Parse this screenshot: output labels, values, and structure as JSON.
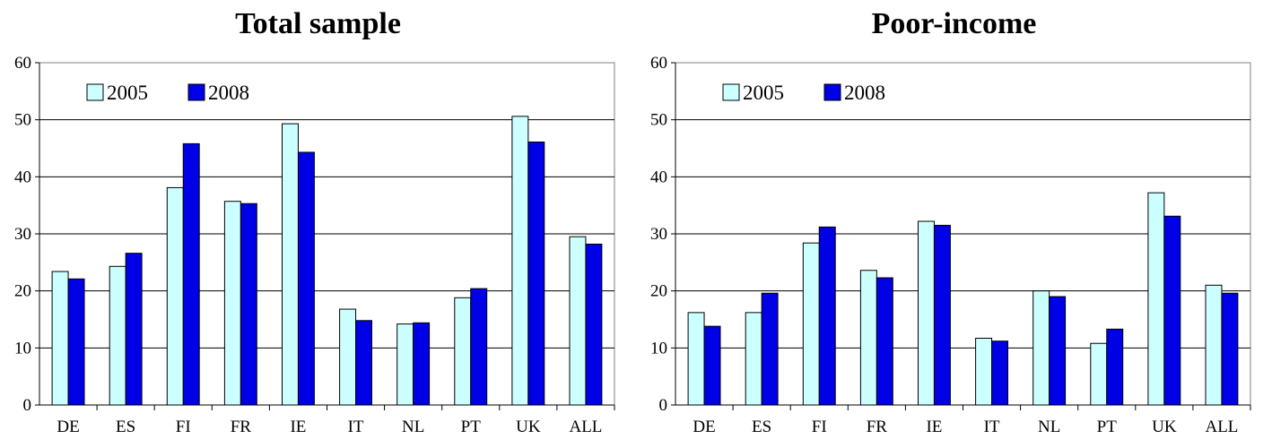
{
  "chart_data": [
    {
      "type": "bar",
      "title": "Total sample",
      "categories": [
        "DE",
        "ES",
        "FI",
        "FR",
        "IE",
        "IT",
        "NL",
        "PT",
        "UK",
        "ALL"
      ],
      "series": [
        {
          "name": "2005",
          "color": "#ccffff",
          "values": [
            23.4,
            24.3,
            38.1,
            35.7,
            49.3,
            16.8,
            14.2,
            18.8,
            50.6,
            29.5
          ]
        },
        {
          "name": "2008",
          "color": "#0000e6",
          "values": [
            22.1,
            26.6,
            45.8,
            35.3,
            44.3,
            14.8,
            14.4,
            20.4,
            46.1,
            28.2
          ]
        }
      ],
      "yticks": [
        "0",
        "10",
        "20",
        "30",
        "40",
        "50",
        "60"
      ],
      "ylim": [
        0,
        60
      ],
      "grid": true,
      "legend": "top-left, inside plot"
    },
    {
      "type": "bar",
      "title": "Poor-income",
      "categories": [
        "DE",
        "ES",
        "FI",
        "FR",
        "IE",
        "IT",
        "NL",
        "PT",
        "UK",
        "ALL"
      ],
      "series": [
        {
          "name": "2005",
          "color": "#ccffff",
          "values": [
            16.2,
            16.2,
            28.4,
            23.6,
            32.2,
            11.7,
            20.0,
            10.8,
            37.2,
            21.0
          ]
        },
        {
          "name": "2008",
          "color": "#0000e6",
          "values": [
            13.8,
            19.6,
            31.2,
            22.3,
            31.5,
            11.2,
            19.0,
            13.3,
            33.1,
            19.6
          ]
        }
      ],
      "yticks": [
        "0",
        "10",
        "20",
        "30",
        "40",
        "50",
        "60"
      ],
      "ylim": [
        0,
        60
      ],
      "grid": true,
      "legend": "top-left, inside plot"
    }
  ]
}
